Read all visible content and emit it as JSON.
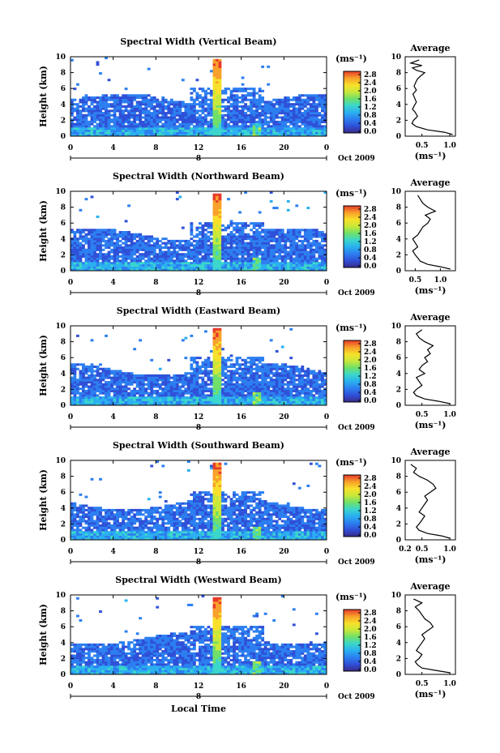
{
  "figure": {
    "xlabel": "Local Time",
    "date_label": "Oct 2009",
    "day_label": "8"
  },
  "colorbar": {
    "unit": "(ms⁻¹)",
    "ticks": [
      "0.0",
      "0.4",
      "0.8",
      "1.2",
      "1.6",
      "2.0",
      "2.4",
      "2.8"
    ],
    "stops": [
      "#3a2a88",
      "#2f50d8",
      "#2c7ff0",
      "#2ab0f0",
      "#3ad6cc",
      "#6fe06a",
      "#c8e83a",
      "#f8e02a",
      "#f8a02a",
      "#e83a2a"
    ]
  },
  "chart_data": [
    {
      "type": "heatmap",
      "title": "Spectral Width (Vertical Beam)",
      "ylabel": "Height (km)",
      "xlim": [
        0,
        24
      ],
      "ylim": [
        0,
        10
      ],
      "x_ticks": [
        "0",
        "4",
        "8",
        "12",
        "16",
        "20",
        "0"
      ],
      "y_ticks": [
        "0",
        "2",
        "4",
        "6",
        "8",
        "10"
      ],
      "colorbar_range": [
        0.0,
        2.8
      ],
      "profile": {
        "title": "Average",
        "xlabel": "(ms⁻¹)",
        "xlim": [
          0.2,
          1.1
        ],
        "x_ticks": [
          "0.5",
          "1.0"
        ],
        "y_ticks": [
          "0",
          "2",
          "4",
          "6",
          "8",
          "10"
        ],
        "height": [
          0.2,
          0.5,
          0.8,
          1.2,
          1.6,
          2.0,
          2.5,
          3.0,
          3.4,
          3.8,
          4.3,
          4.8,
          5.3,
          5.8,
          6.3,
          6.8,
          7.2,
          7.6,
          8.0,
          8.3,
          8.6,
          8.9,
          9.2,
          9.6
        ],
        "width": [
          1.05,
          0.9,
          0.6,
          0.4,
          0.32,
          0.35,
          0.42,
          0.38,
          0.33,
          0.36,
          0.4,
          0.37,
          0.34,
          0.4,
          0.36,
          0.39,
          0.42,
          0.48,
          0.55,
          0.4,
          0.33,
          0.5,
          0.3,
          0.45
        ]
      }
    },
    {
      "type": "heatmap",
      "title": "Spectral Width (Northward Beam)",
      "ylabel": "Height (km)",
      "xlim": [
        0,
        24
      ],
      "ylim": [
        0,
        10
      ],
      "x_ticks": [
        "0",
        "4",
        "8",
        "12",
        "16",
        "20",
        "0"
      ],
      "y_ticks": [
        "0",
        "2",
        "4",
        "6",
        "8",
        "10"
      ],
      "colorbar_range": [
        0.0,
        2.8
      ],
      "profile": {
        "title": "Average",
        "xlabel": "(ms⁻¹)",
        "xlim": [
          0.3,
          1.3
        ],
        "x_ticks": [
          "0.5",
          "1.0"
        ],
        "y_ticks": [
          "0",
          "2",
          "4",
          "6",
          "8",
          "10"
        ],
        "height": [
          0.2,
          0.5,
          0.8,
          1.2,
          1.6,
          2.0,
          2.5,
          3.0,
          3.5,
          4.0,
          4.5,
          5.0,
          5.5,
          6.0,
          6.5,
          7.0,
          7.5,
          8.0,
          8.5,
          9.0,
          9.5
        ],
        "width": [
          1.2,
          1.0,
          0.75,
          0.6,
          0.55,
          0.5,
          0.45,
          0.55,
          0.5,
          0.45,
          0.55,
          0.6,
          0.65,
          0.75,
          0.8,
          0.7,
          0.9,
          0.75,
          0.65,
          0.6,
          0.55
        ]
      }
    },
    {
      "type": "heatmap",
      "title": "Spectral Width (Eastward Beam)",
      "ylabel": "Height (km)",
      "xlim": [
        0,
        24
      ],
      "ylim": [
        0,
        10
      ],
      "x_ticks": [
        "0",
        "4",
        "8",
        "12",
        "16",
        "20",
        "0"
      ],
      "y_ticks": [
        "0",
        "2",
        "4",
        "6",
        "8",
        "10"
      ],
      "colorbar_range": [
        0.0,
        2.8
      ],
      "profile": {
        "title": "Average",
        "xlabel": "(ms⁻¹)",
        "xlim": [
          0.2,
          1.1
        ],
        "x_ticks": [
          "0.5",
          "1.0"
        ],
        "y_ticks": [
          "0",
          "2",
          "4",
          "6",
          "8",
          "10"
        ],
        "height": [
          0.2,
          0.5,
          0.8,
          1.2,
          1.6,
          2.0,
          2.5,
          3.0,
          3.5,
          4.0,
          4.5,
          5.0,
          5.5,
          6.0,
          6.5,
          7.0,
          7.5,
          8.0,
          8.5,
          9.0,
          9.5
        ],
        "width": [
          1.0,
          0.8,
          0.55,
          0.4,
          0.35,
          0.4,
          0.5,
          0.45,
          0.4,
          0.55,
          0.45,
          0.5,
          0.6,
          0.55,
          0.65,
          0.6,
          0.7,
          0.55,
          0.45,
          0.4,
          0.5
        ]
      }
    },
    {
      "type": "heatmap",
      "title": "Spectral Width (Southward Beam)",
      "ylabel": "Height (km)",
      "xlim": [
        0,
        24
      ],
      "ylim": [
        0,
        10
      ],
      "x_ticks": [
        "0",
        "4",
        "8",
        "12",
        "16",
        "20",
        "0"
      ],
      "y_ticks": [
        "0",
        "2",
        "4",
        "6",
        "8",
        "10"
      ],
      "colorbar_range": [
        0.0,
        2.8
      ],
      "profile": {
        "title": "Average",
        "xlabel": "(ms⁻¹)",
        "xlim": [
          0.2,
          1.1
        ],
        "x_ticks": [
          "0.2",
          "0.5",
          "1.0"
        ],
        "y_ticks": [
          "0",
          "2",
          "4",
          "6",
          "8",
          "10"
        ],
        "height": [
          0.2,
          0.5,
          0.8,
          1.2,
          1.6,
          2.0,
          2.5,
          3.0,
          3.5,
          4.0,
          4.5,
          5.0,
          5.5,
          6.0,
          6.5,
          7.0,
          7.5,
          8.0,
          8.5,
          9.0,
          9.5
        ],
        "width": [
          1.0,
          0.85,
          0.6,
          0.45,
          0.4,
          0.45,
          0.5,
          0.55,
          0.45,
          0.5,
          0.55,
          0.6,
          0.55,
          0.65,
          0.75,
          0.7,
          0.6,
          0.45,
          0.35,
          0.4,
          0.3
        ]
      }
    },
    {
      "type": "heatmap",
      "title": "Spectral Width (Westward Beam)",
      "ylabel": "Height (km)",
      "xlim": [
        0,
        24
      ],
      "ylim": [
        0,
        10
      ],
      "x_ticks": [
        "0",
        "4",
        "8",
        "12",
        "16",
        "20",
        "0"
      ],
      "y_ticks": [
        "0",
        "2",
        "4",
        "6",
        "8",
        "10"
      ],
      "colorbar_range": [
        0.0,
        2.8
      ],
      "profile": {
        "title": "Average",
        "xlabel": "(ms⁻¹)",
        "xlim": [
          0.2,
          1.1
        ],
        "x_ticks": [
          "0.5",
          "1.0"
        ],
        "y_ticks": [
          "0",
          "2",
          "4",
          "6",
          "8",
          "10"
        ],
        "height": [
          0.2,
          0.5,
          0.8,
          1.2,
          1.6,
          2.0,
          2.5,
          3.0,
          3.5,
          4.0,
          4.5,
          5.0,
          5.5,
          6.0,
          6.5,
          7.0,
          7.5,
          8.0,
          8.5,
          9.0,
          9.5
        ],
        "width": [
          1.0,
          0.75,
          0.5,
          0.42,
          0.38,
          0.45,
          0.5,
          0.4,
          0.45,
          0.5,
          0.55,
          0.5,
          0.6,
          0.7,
          0.65,
          0.55,
          0.5,
          0.45,
          0.38,
          0.5,
          0.35
        ]
      }
    }
  ]
}
